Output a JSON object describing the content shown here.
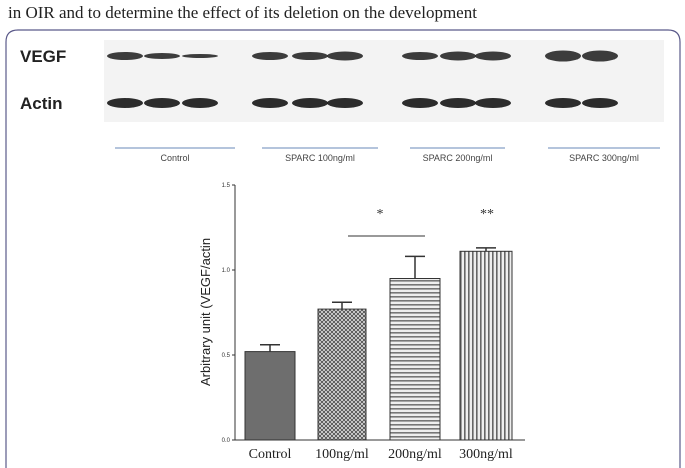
{
  "header": {
    "text": "in OIR and to determine the effect of its deletion on the development"
  },
  "blot": {
    "rows": [
      "VEGF",
      "Actin"
    ],
    "groups": [
      "Control",
      "SPARC 100ng/ml",
      "SPARC 200ng/ml",
      "SPARC 300ng/ml"
    ]
  },
  "chart_data": {
    "type": "bar",
    "ylabel": "Arbitrary unit (VEGF/actin",
    "categories": [
      "Control",
      "100ng/ml",
      "200ng/ml",
      "300ng/ml"
    ],
    "values": [
      0.52,
      0.77,
      0.95,
      1.11
    ],
    "errors": [
      0.04,
      0.04,
      0.13,
      0.02
    ],
    "colors": [
      "#6e6e6e",
      "#555555",
      "#777777",
      "#666666"
    ],
    "ylim": [
      0,
      1.5
    ],
    "yticks": [
      {
        "value": 0,
        "label": "0.0"
      },
      {
        "value": 0.5,
        "label": "0.5"
      },
      {
        "value": 1,
        "label": "1.0"
      },
      {
        "value": 1.5,
        "label": "1.5"
      }
    ],
    "annotations": [
      "*",
      "**"
    ]
  }
}
